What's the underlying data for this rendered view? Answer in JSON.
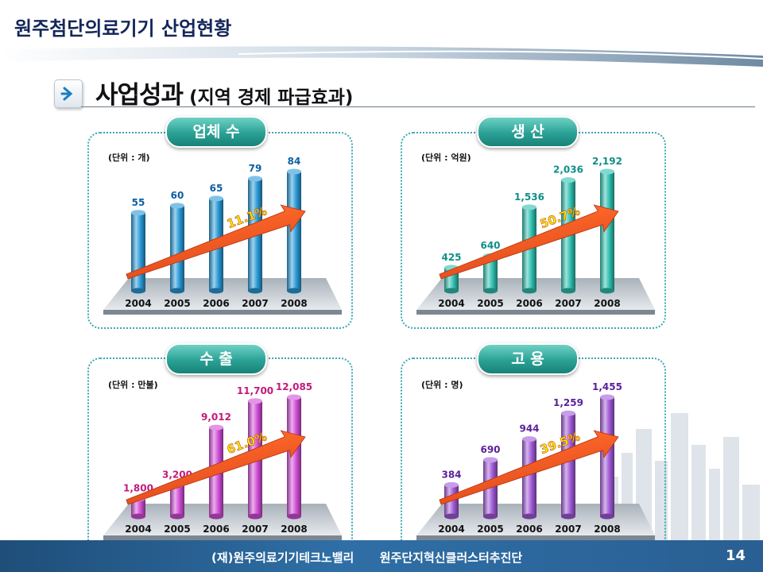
{
  "header": {
    "title": "원주첨단의료기기 산업현황"
  },
  "section": {
    "title": "사업성과",
    "subtitle": "(지역 경제 파급효과)"
  },
  "footer": {
    "org1": "(재)원주의료기기테크노밸리",
    "org2": "원주단지혁신클러스터추진단",
    "page": "14"
  },
  "chart_data": [
    {
      "type": "bar",
      "title": "업체 수",
      "unit_label": "(단위 : 개)",
      "categories": [
        "2004",
        "2005",
        "2006",
        "2007",
        "2008"
      ],
      "values": [
        55,
        60,
        65,
        79,
        84
      ],
      "value_labels": [
        "55",
        "60",
        "65",
        "79",
        "84"
      ],
      "growth_label": "11.1%",
      "bar_color": "#2a9ad8",
      "label_color": "#0b5fa5"
    },
    {
      "type": "bar",
      "title": "생 산",
      "unit_label": "(단위 : 억원)",
      "categories": [
        "2004",
        "2005",
        "2006",
        "2007",
        "2008"
      ],
      "values": [
        425,
        640,
        1536,
        2036,
        2192
      ],
      "value_labels": [
        "425",
        "640",
        "1,536",
        "2,036",
        "2,192"
      ],
      "growth_label": "50.7%",
      "bar_color": "#2fc0b0",
      "label_color": "#0f8f87"
    },
    {
      "type": "bar",
      "title": "수 출",
      "unit_label": "(단위 : 만불)",
      "categories": [
        "2004",
        "2005",
        "2006",
        "2007",
        "2008"
      ],
      "values": [
        1800,
        3200,
        9012,
        11700,
        12085
      ],
      "value_labels": [
        "1,800",
        "3,200",
        "9,012",
        "11,700",
        "12,085"
      ],
      "growth_label": "61.0%",
      "bar_color": "#d24ed8",
      "label_color": "#c21a7c"
    },
    {
      "type": "bar",
      "title": "고 용",
      "unit_label": "(단위 : 명)",
      "categories": [
        "2004",
        "2005",
        "2006",
        "2007",
        "2008"
      ],
      "values": [
        384,
        690,
        944,
        1259,
        1455
      ],
      "value_labels": [
        "384",
        "690",
        "944",
        "1,259",
        "1,455"
      ],
      "growth_label": "39.5%",
      "bar_color": "#a15ad8",
      "label_color": "#5b1f9a"
    }
  ]
}
